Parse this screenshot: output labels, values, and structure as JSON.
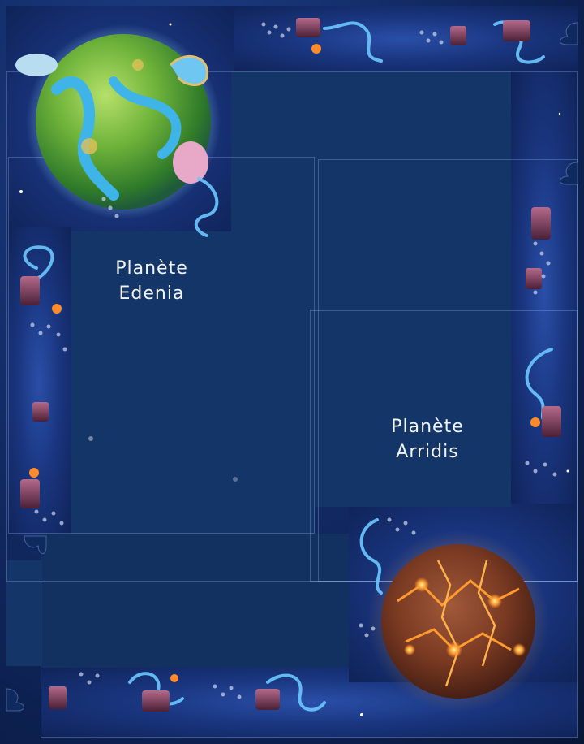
{
  "board": {
    "edenia": {
      "line1": "Planète",
      "line2": "Edenia"
    },
    "arridis": {
      "line1": "Planète",
      "line2": "Arridis"
    }
  },
  "colors": {
    "space": "#132d69",
    "panel": "#143567",
    "text": "#f2f4f8",
    "edenia_green": "#6fb33a",
    "edenia_water": "#3fb4e8",
    "arridis_rock": "#7a3a22",
    "arridis_lava": "#ff9a2e",
    "tube_glow": "#6cc8ff"
  },
  "icons": [
    "planet-edenia-icon",
    "planet-arridis-icon",
    "cannon-icon",
    "glowing-tube-icon",
    "footprint-trail-icon",
    "puzzle-notch-icon"
  ]
}
